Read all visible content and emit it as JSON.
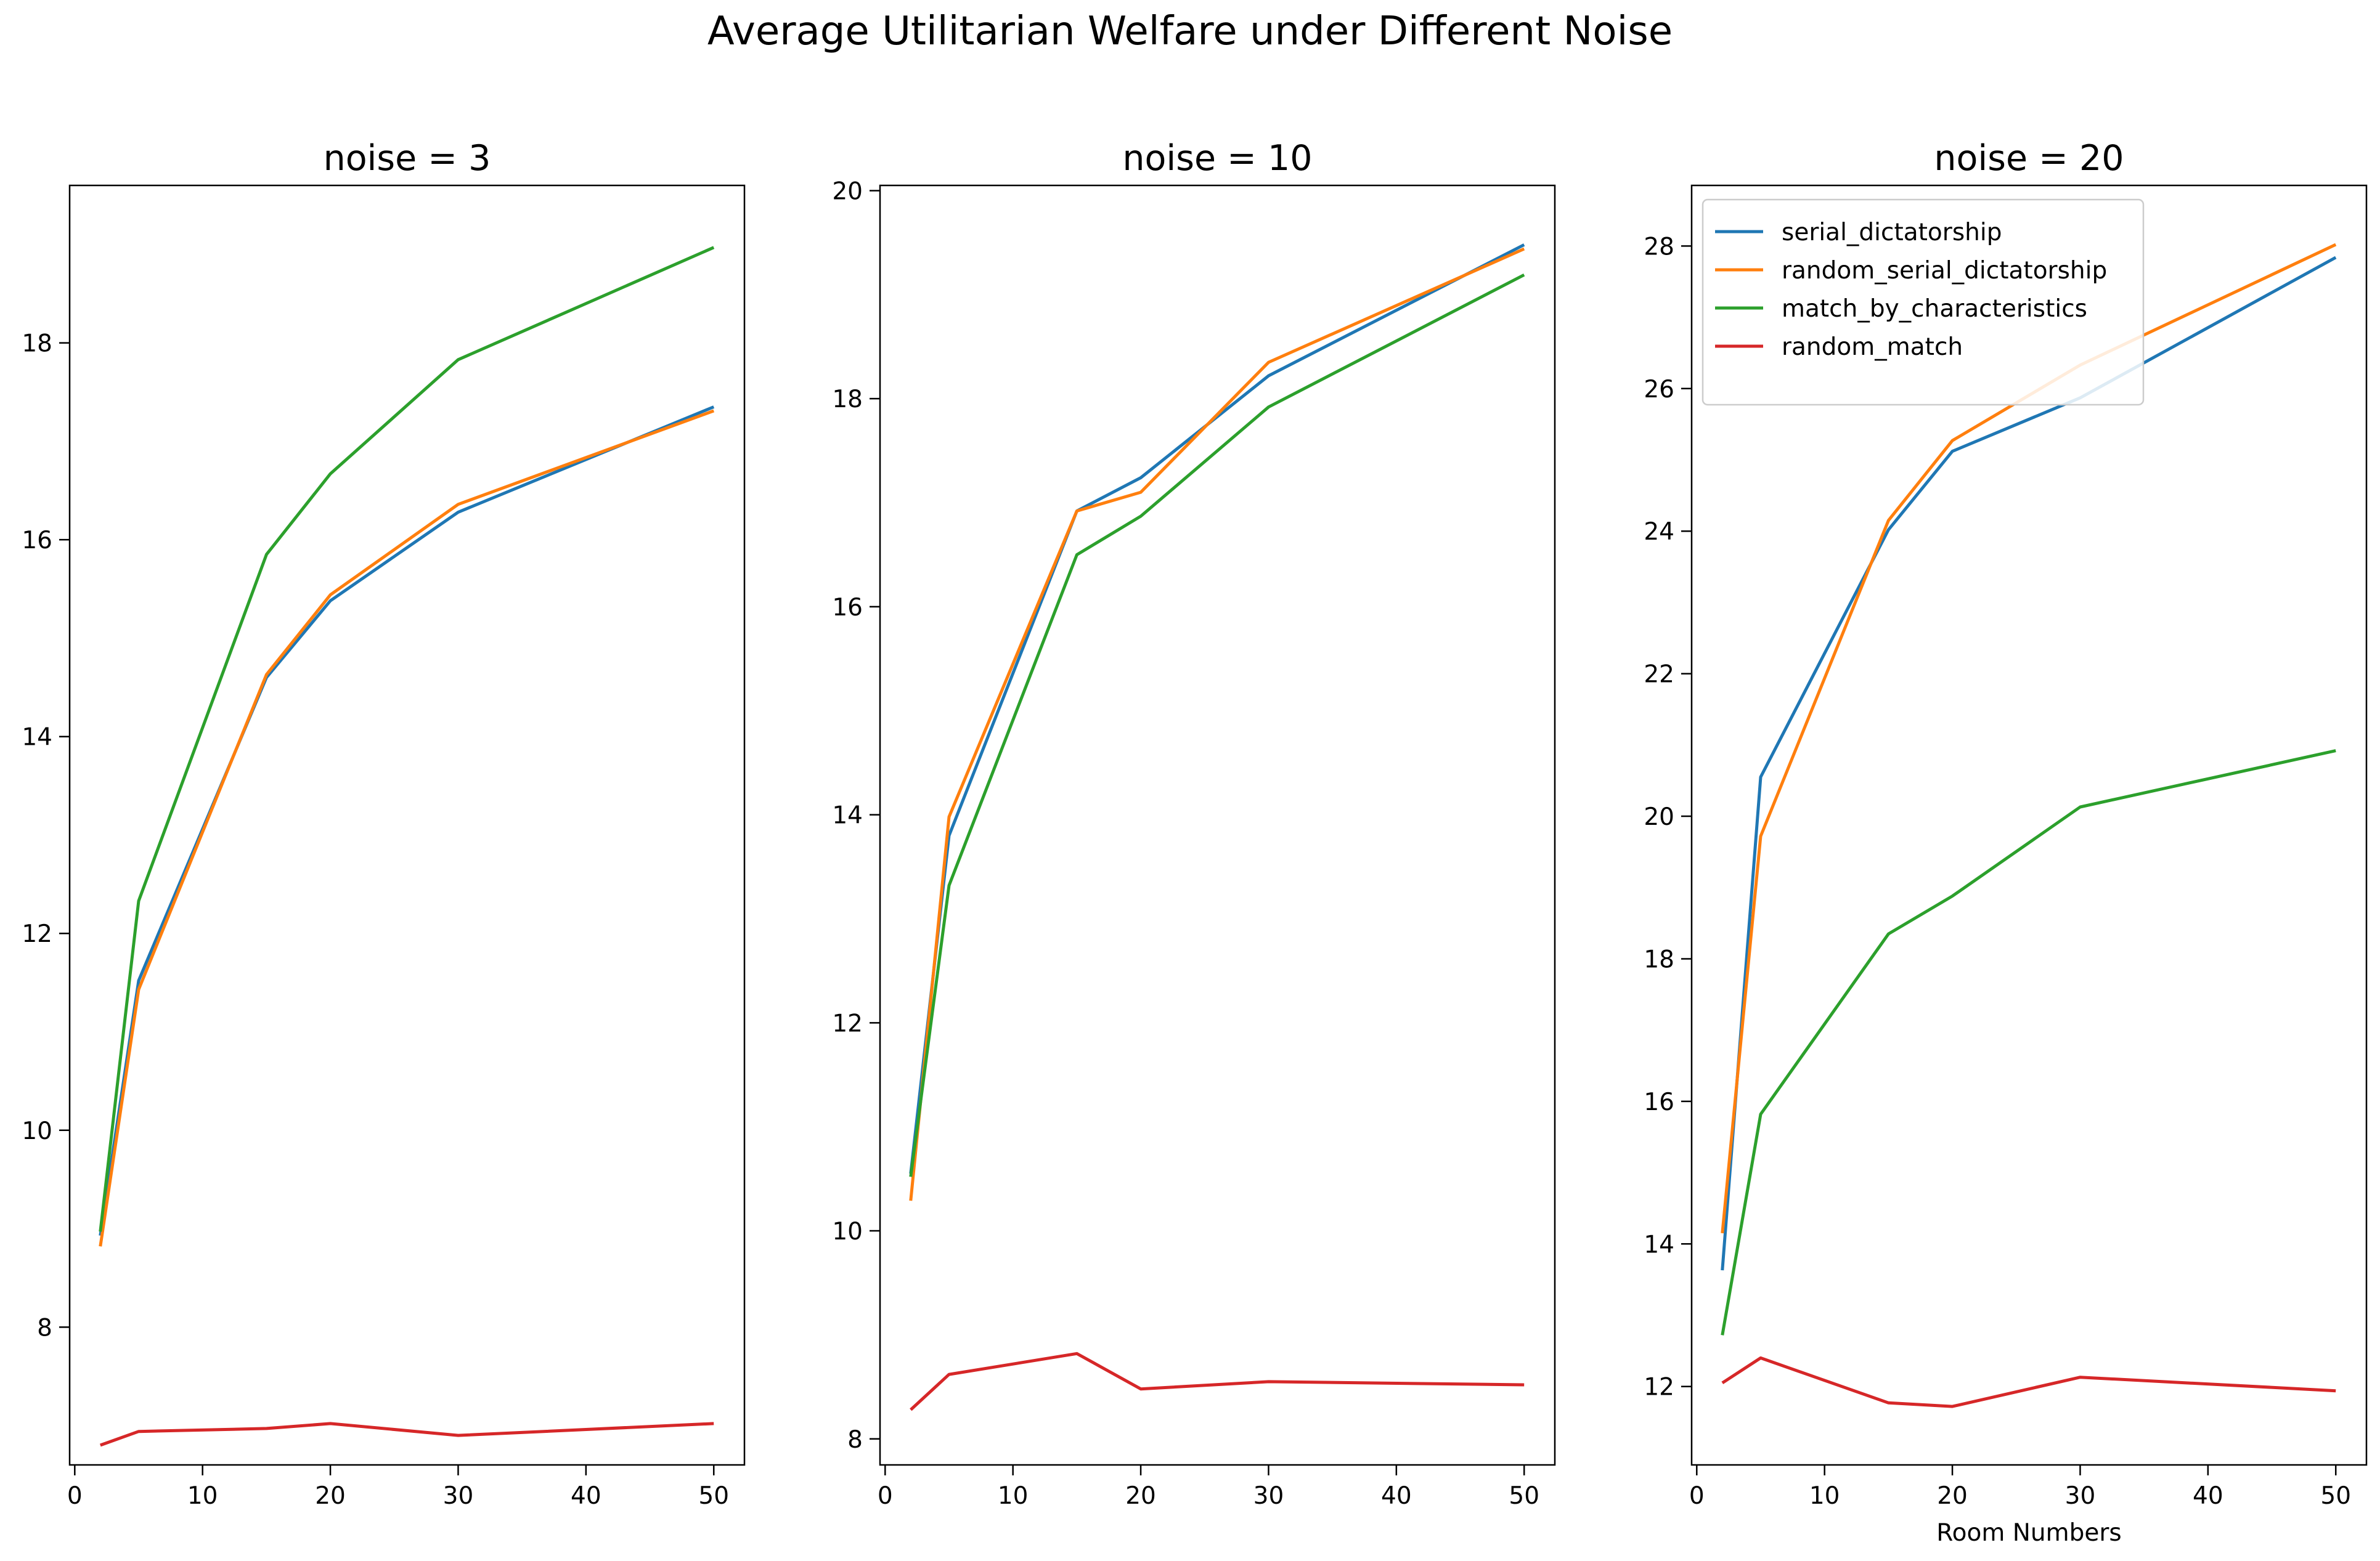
{
  "figure": {
    "suptitle": "Average Utilitarian Welfare under Different Noise"
  },
  "colors": {
    "serial_dictatorship": "#1f77b4",
    "random_serial_dictatorship": "#ff7f0e",
    "match_by_characteristics": "#2ca02c",
    "random_match": "#d62728"
  },
  "chart_data": [
    {
      "type": "line",
      "title": "noise = 3",
      "xlabel": "",
      "ylabel": "",
      "x": [
        2,
        5,
        15,
        20,
        30,
        50
      ],
      "xlim": [
        -0.4,
        52.4
      ],
      "ylim": [
        6.6,
        19.6
      ],
      "xticks": [
        0,
        10,
        20,
        30,
        40,
        50
      ],
      "yticks": [
        8,
        10,
        12,
        14,
        16,
        18
      ],
      "grid": false,
      "series": [
        {
          "name": "serial_dictatorship",
          "values": [
            8.93,
            11.52,
            14.6,
            15.38,
            16.28,
            17.35
          ]
        },
        {
          "name": "random_serial_dictatorship",
          "values": [
            8.82,
            11.43,
            14.63,
            15.44,
            16.36,
            17.31
          ]
        },
        {
          "name": "match_by_characteristics",
          "values": [
            8.97,
            12.33,
            15.85,
            16.67,
            17.83,
            18.97
          ]
        },
        {
          "name": "random_match",
          "values": [
            6.8,
            6.94,
            6.97,
            7.02,
            6.9,
            7.02
          ]
        }
      ]
    },
    {
      "type": "line",
      "title": "noise = 10",
      "xlabel": "",
      "ylabel": "",
      "x": [
        2,
        5,
        15,
        20,
        30,
        50
      ],
      "xlim": [
        -0.4,
        52.4
      ],
      "ylim": [
        7.75,
        20.05
      ],
      "xticks": [
        0,
        10,
        20,
        30,
        40,
        50
      ],
      "yticks": [
        8,
        10,
        12,
        14,
        16,
        18,
        20
      ],
      "grid": false,
      "series": [
        {
          "name": "serial_dictatorship",
          "values": [
            10.55,
            13.8,
            16.92,
            17.24,
            18.22,
            19.48
          ]
        },
        {
          "name": "random_serial_dictatorship",
          "values": [
            10.29,
            13.98,
            16.92,
            17.1,
            18.35,
            19.44
          ]
        },
        {
          "name": "match_by_characteristics",
          "values": [
            10.52,
            13.32,
            16.5,
            16.87,
            17.92,
            19.19
          ]
        },
        {
          "name": "random_match",
          "values": [
            8.28,
            8.62,
            8.82,
            8.48,
            8.55,
            8.52
          ]
        }
      ]
    },
    {
      "type": "line",
      "title": "noise = 20",
      "xlabel": "Room Numbers",
      "ylabel": "",
      "x": [
        2,
        5,
        15,
        20,
        30,
        50
      ],
      "xlim": [
        -0.4,
        52.4
      ],
      "ylim": [
        10.9,
        28.85
      ],
      "xticks": [
        0,
        10,
        20,
        30,
        40,
        50
      ],
      "yticks": [
        12,
        14,
        16,
        18,
        20,
        22,
        24,
        26,
        28
      ],
      "grid": false,
      "legend": "top-left",
      "series": [
        {
          "name": "serial_dictatorship",
          "values": [
            13.63,
            20.55,
            24.02,
            25.12,
            25.87,
            27.84
          ]
        },
        {
          "name": "random_serial_dictatorship",
          "values": [
            14.15,
            19.72,
            24.15,
            25.27,
            26.33,
            28.02
          ]
        },
        {
          "name": "match_by_characteristics",
          "values": [
            12.72,
            15.82,
            18.35,
            18.88,
            20.13,
            20.92
          ]
        },
        {
          "name": "random_match",
          "values": [
            12.05,
            12.4,
            11.77,
            11.72,
            12.13,
            11.94
          ]
        }
      ]
    }
  ]
}
